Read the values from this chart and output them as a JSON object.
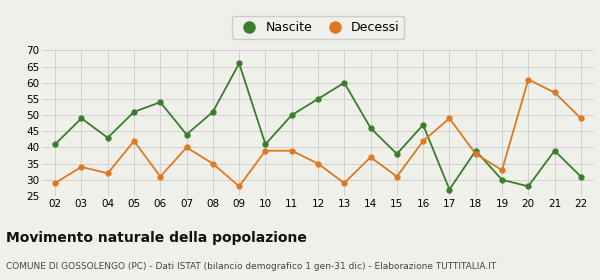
{
  "years": [
    "02",
    "03",
    "04",
    "05",
    "06",
    "07",
    "08",
    "09",
    "10",
    "11",
    "12",
    "13",
    "14",
    "15",
    "16",
    "17",
    "18",
    "19",
    "20",
    "21",
    "22"
  ],
  "nascite": [
    41,
    49,
    43,
    51,
    54,
    44,
    51,
    66,
    41,
    50,
    55,
    60,
    46,
    38,
    47,
    27,
    39,
    30,
    28,
    39,
    31
  ],
  "decessi": [
    29,
    34,
    32,
    42,
    31,
    40,
    35,
    28,
    39,
    39,
    35,
    29,
    37,
    31,
    42,
    49,
    38,
    33,
    61,
    57,
    49
  ],
  "nascite_color": "#3a7d2c",
  "decessi_color": "#e07820",
  "background_color": "#f0f0eb",
  "grid_color": "#cccccc",
  "ylim": [
    25,
    70
  ],
  "yticks": [
    25,
    30,
    35,
    40,
    45,
    50,
    55,
    60,
    65,
    70
  ],
  "title": "Movimento naturale della popolazione",
  "subtitle": "COMUNE DI GOSSOLENGO (PC) - Dati ISTAT (bilancio demografico 1 gen-31 dic) - Elaborazione TUTTITALIA.IT",
  "title_fontsize": 10,
  "subtitle_fontsize": 6.5,
  "legend_label_nascite": "Nascite",
  "legend_label_decessi": "Decessi",
  "legend_fontsize": 9,
  "tick_fontsize": 7.5
}
